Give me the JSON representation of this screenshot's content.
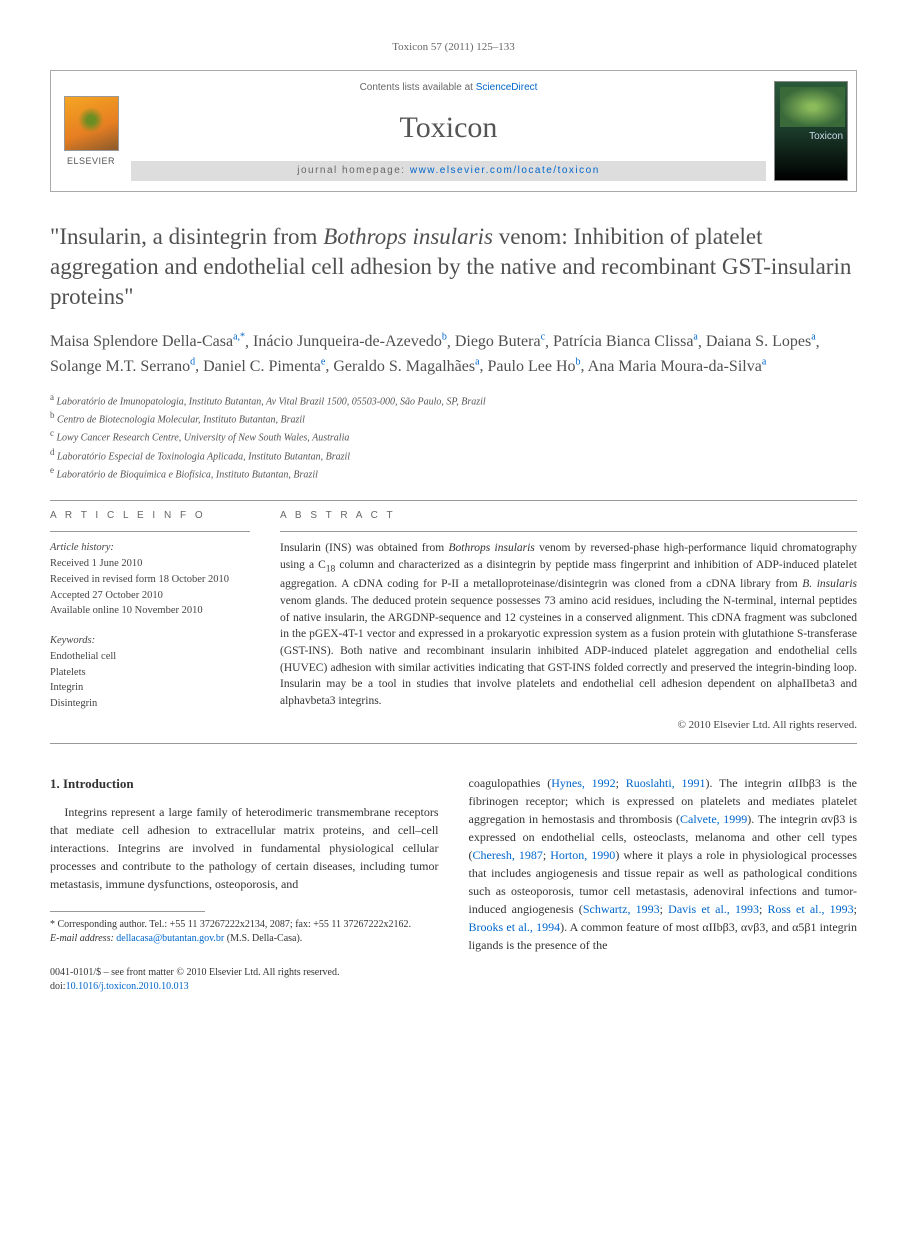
{
  "top_reference": "Toxicon 57 (2011) 125–133",
  "header": {
    "contents_prefix": "Contents lists available at ",
    "contents_link": "ScienceDirect",
    "journal": "Toxicon",
    "homepage_prefix": "journal homepage: ",
    "homepage_link": "www.elsevier.com/locate/toxicon",
    "publisher": "ELSEVIER",
    "cover_label": "Toxicon"
  },
  "title": {
    "pre": "\"Insularin, a disintegrin from ",
    "italic": "Bothrops insularis",
    "post": " venom: Inhibition of platelet aggregation and endothelial cell adhesion by the native and recombinant GST-insularin proteins\""
  },
  "authors": [
    {
      "name": "Maisa Splendore Della-Casa",
      "sup": "a,*"
    },
    {
      "name": "Inácio Junqueira-de-Azevedo",
      "sup": "b"
    },
    {
      "name": "Diego Butera",
      "sup": "c"
    },
    {
      "name": "Patrícia Bianca Clissa",
      "sup": "a"
    },
    {
      "name": "Daiana S. Lopes",
      "sup": "a"
    },
    {
      "name": "Solange M.T. Serrano",
      "sup": "d"
    },
    {
      "name": "Daniel C. Pimenta",
      "sup": "e"
    },
    {
      "name": "Geraldo S. Magalhães",
      "sup": "a"
    },
    {
      "name": "Paulo Lee Ho",
      "sup": "b"
    },
    {
      "name": "Ana Maria Moura-da-Silva",
      "sup": "a"
    }
  ],
  "affiliations": [
    {
      "sup": "a",
      "text": "Laboratório de Imunopatologia, Instituto Butantan, Av Vital Brazil 1500, 05503-000, São Paulo, SP, Brazil"
    },
    {
      "sup": "b",
      "text": "Centro de Biotecnologia Molecular, Instituto Butantan, Brazil"
    },
    {
      "sup": "c",
      "text": "Lowy Cancer Research Centre, University of New South Wales, Australia"
    },
    {
      "sup": "d",
      "text": "Laboratório Especial de Toxinologia Aplicada, Instituto Butantan, Brazil"
    },
    {
      "sup": "e",
      "text": "Laboratório de Bioquímica e Biofísica, Instituto Butantan, Brazil"
    }
  ],
  "article_info": {
    "head": "A R T I C L E   I N F O",
    "history_label": "Article history:",
    "history": [
      "Received 1 June 2010",
      "Received in revised form 18 October 2010",
      "Accepted 27 October 2010",
      "Available online 10 November 2010"
    ],
    "keywords_label": "Keywords:",
    "keywords": [
      "Endothelial cell",
      "Platelets",
      "Integrin",
      "Disintegrin"
    ]
  },
  "abstract": {
    "head": "A B S T R A C T",
    "text_parts": [
      {
        "t": "Insularin (INS) was obtained from "
      },
      {
        "t": "Bothrops insularis",
        "i": true
      },
      {
        "t": " venom by reversed-phase high-performance liquid chromatography using a C"
      },
      {
        "t": "18",
        "sub": true
      },
      {
        "t": " column and characterized as a disintegrin by peptide mass fingerprint and inhibition of ADP-induced platelet aggregation. A cDNA coding for P-II a metalloproteinase/disintegrin was cloned from a cDNA library from "
      },
      {
        "t": "B. insularis",
        "i": true
      },
      {
        "t": " venom glands. The deduced protein sequence possesses 73 amino acid residues, including the N-terminal, internal peptides of native insularin, the ARGDNP-sequence and 12 cysteines in a conserved alignment. This cDNA fragment was subcloned in the pGEX-4T-1 vector and expressed in a prokaryotic expression system as a fusion protein with glutathione S-transferase (GST-INS). Both native and recombinant insularin inhibited ADP-induced platelet aggregation and endothelial cells (HUVEC) adhesion with similar activities indicating that GST-INS folded correctly and preserved the integrin-binding loop. Insularin may be a tool in studies that involve platelets and endothelial cell adhesion dependent on alphaIIbeta3 and alphavbeta3 integrins."
      }
    ],
    "copyright": "© 2010 Elsevier Ltd. All rights reserved."
  },
  "body": {
    "section_number": "1.",
    "section_title": "Introduction",
    "col1_para": "Integrins represent a large family of heterodimeric transmembrane receptors that mediate cell adhesion to extracellular matrix proteins, and cell–cell interactions. Integrins are involved in fundamental physiological cellular processes and contribute to the pathology of certain diseases, including tumor metastasis, immune dysfunctions, osteoporosis, and",
    "col2_parts": [
      {
        "t": "coagulopathies ("
      },
      {
        "t": "Hynes, 1992",
        "link": true
      },
      {
        "t": "; "
      },
      {
        "t": "Ruoslahti, 1991",
        "link": true
      },
      {
        "t": "). The integrin αIIbβ3 is the fibrinogen receptor; which is expressed on platelets and mediates platelet aggregation in hemostasis and thrombosis ("
      },
      {
        "t": "Calvete, 1999",
        "link": true
      },
      {
        "t": "). The integrin αvβ3 is expressed on endothelial cells, osteoclasts, melanoma and other cell types ("
      },
      {
        "t": "Cheresh, 1987",
        "link": true
      },
      {
        "t": "; "
      },
      {
        "t": "Horton, 1990",
        "link": true
      },
      {
        "t": ") where it plays a role in physiological processes that includes angiogenesis and tissue repair as well as pathological conditions such as osteoporosis, tumor cell metastasis, adenoviral infections and tumor-induced angiogenesis ("
      },
      {
        "t": "Schwartz, 1993",
        "link": true
      },
      {
        "t": "; "
      },
      {
        "t": "Davis et al., 1993",
        "link": true
      },
      {
        "t": "; "
      },
      {
        "t": "Ross et al., 1993",
        "link": true
      },
      {
        "t": "; "
      },
      {
        "t": "Brooks et al., 1994",
        "link": true
      },
      {
        "t": "). A common feature of most αIIbβ3, αvβ3, and α5β1 integrin ligands is the presence of the"
      }
    ]
  },
  "footnotes": {
    "corr": "* Corresponding author. Tel.: +55 11 37267222x2134, 2087; fax: +55 11 37267222x2162.",
    "email_label": "E-mail address:",
    "email": "dellacasa@butantan.gov.br",
    "email_suffix": "(M.S. Della-Casa)."
  },
  "footer": {
    "line1": "0041-0101/$ – see front matter © 2010 Elsevier Ltd. All rights reserved.",
    "doi_label": "doi:",
    "doi": "10.1016/j.toxicon.2010.10.013"
  },
  "colors": {
    "link": "#0066cc",
    "text": "#333333",
    "heading": "#505050",
    "rule": "#999999"
  }
}
